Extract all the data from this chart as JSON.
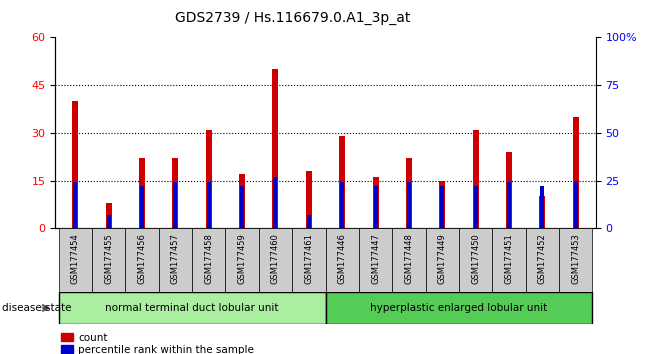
{
  "title": "GDS2739 / Hs.116679.0.A1_3p_at",
  "samples": [
    "GSM177454",
    "GSM177455",
    "GSM177456",
    "GSM177457",
    "GSM177458",
    "GSM177459",
    "GSM177460",
    "GSM177461",
    "GSM177446",
    "GSM177447",
    "GSM177448",
    "GSM177449",
    "GSM177450",
    "GSM177451",
    "GSM177452",
    "GSM177453"
  ],
  "counts": [
    40,
    8,
    22,
    22,
    31,
    17,
    50,
    18,
    29,
    16,
    22,
    15,
    31,
    24,
    10,
    35
  ],
  "percentiles": [
    24,
    7,
    22,
    24,
    24,
    22,
    27,
    7,
    24,
    22,
    24,
    22,
    22,
    24,
    22,
    25
  ],
  "group1_label": "normal terminal duct lobular unit",
  "group2_label": "hyperplastic enlarged lobular unit",
  "group1_count": 8,
  "group2_count": 8,
  "disease_state_label": "disease state",
  "ylim_left": [
    0,
    60
  ],
  "ylim_right": [
    0,
    100
  ],
  "yticks_left": [
    0,
    15,
    30,
    45,
    60
  ],
  "yticks_right": [
    0,
    25,
    50,
    75,
    100
  ],
  "ytick_labels_right": [
    "0",
    "25",
    "50",
    "75",
    "100%"
  ],
  "bar_color": "#cc0000",
  "percentile_color": "#0000cc",
  "group1_bg": "#aaeea0",
  "group2_bg": "#55cc55",
  "tick_area_bg": "#cccccc",
  "bar_width": 0.18,
  "percentile_bar_width": 0.12
}
